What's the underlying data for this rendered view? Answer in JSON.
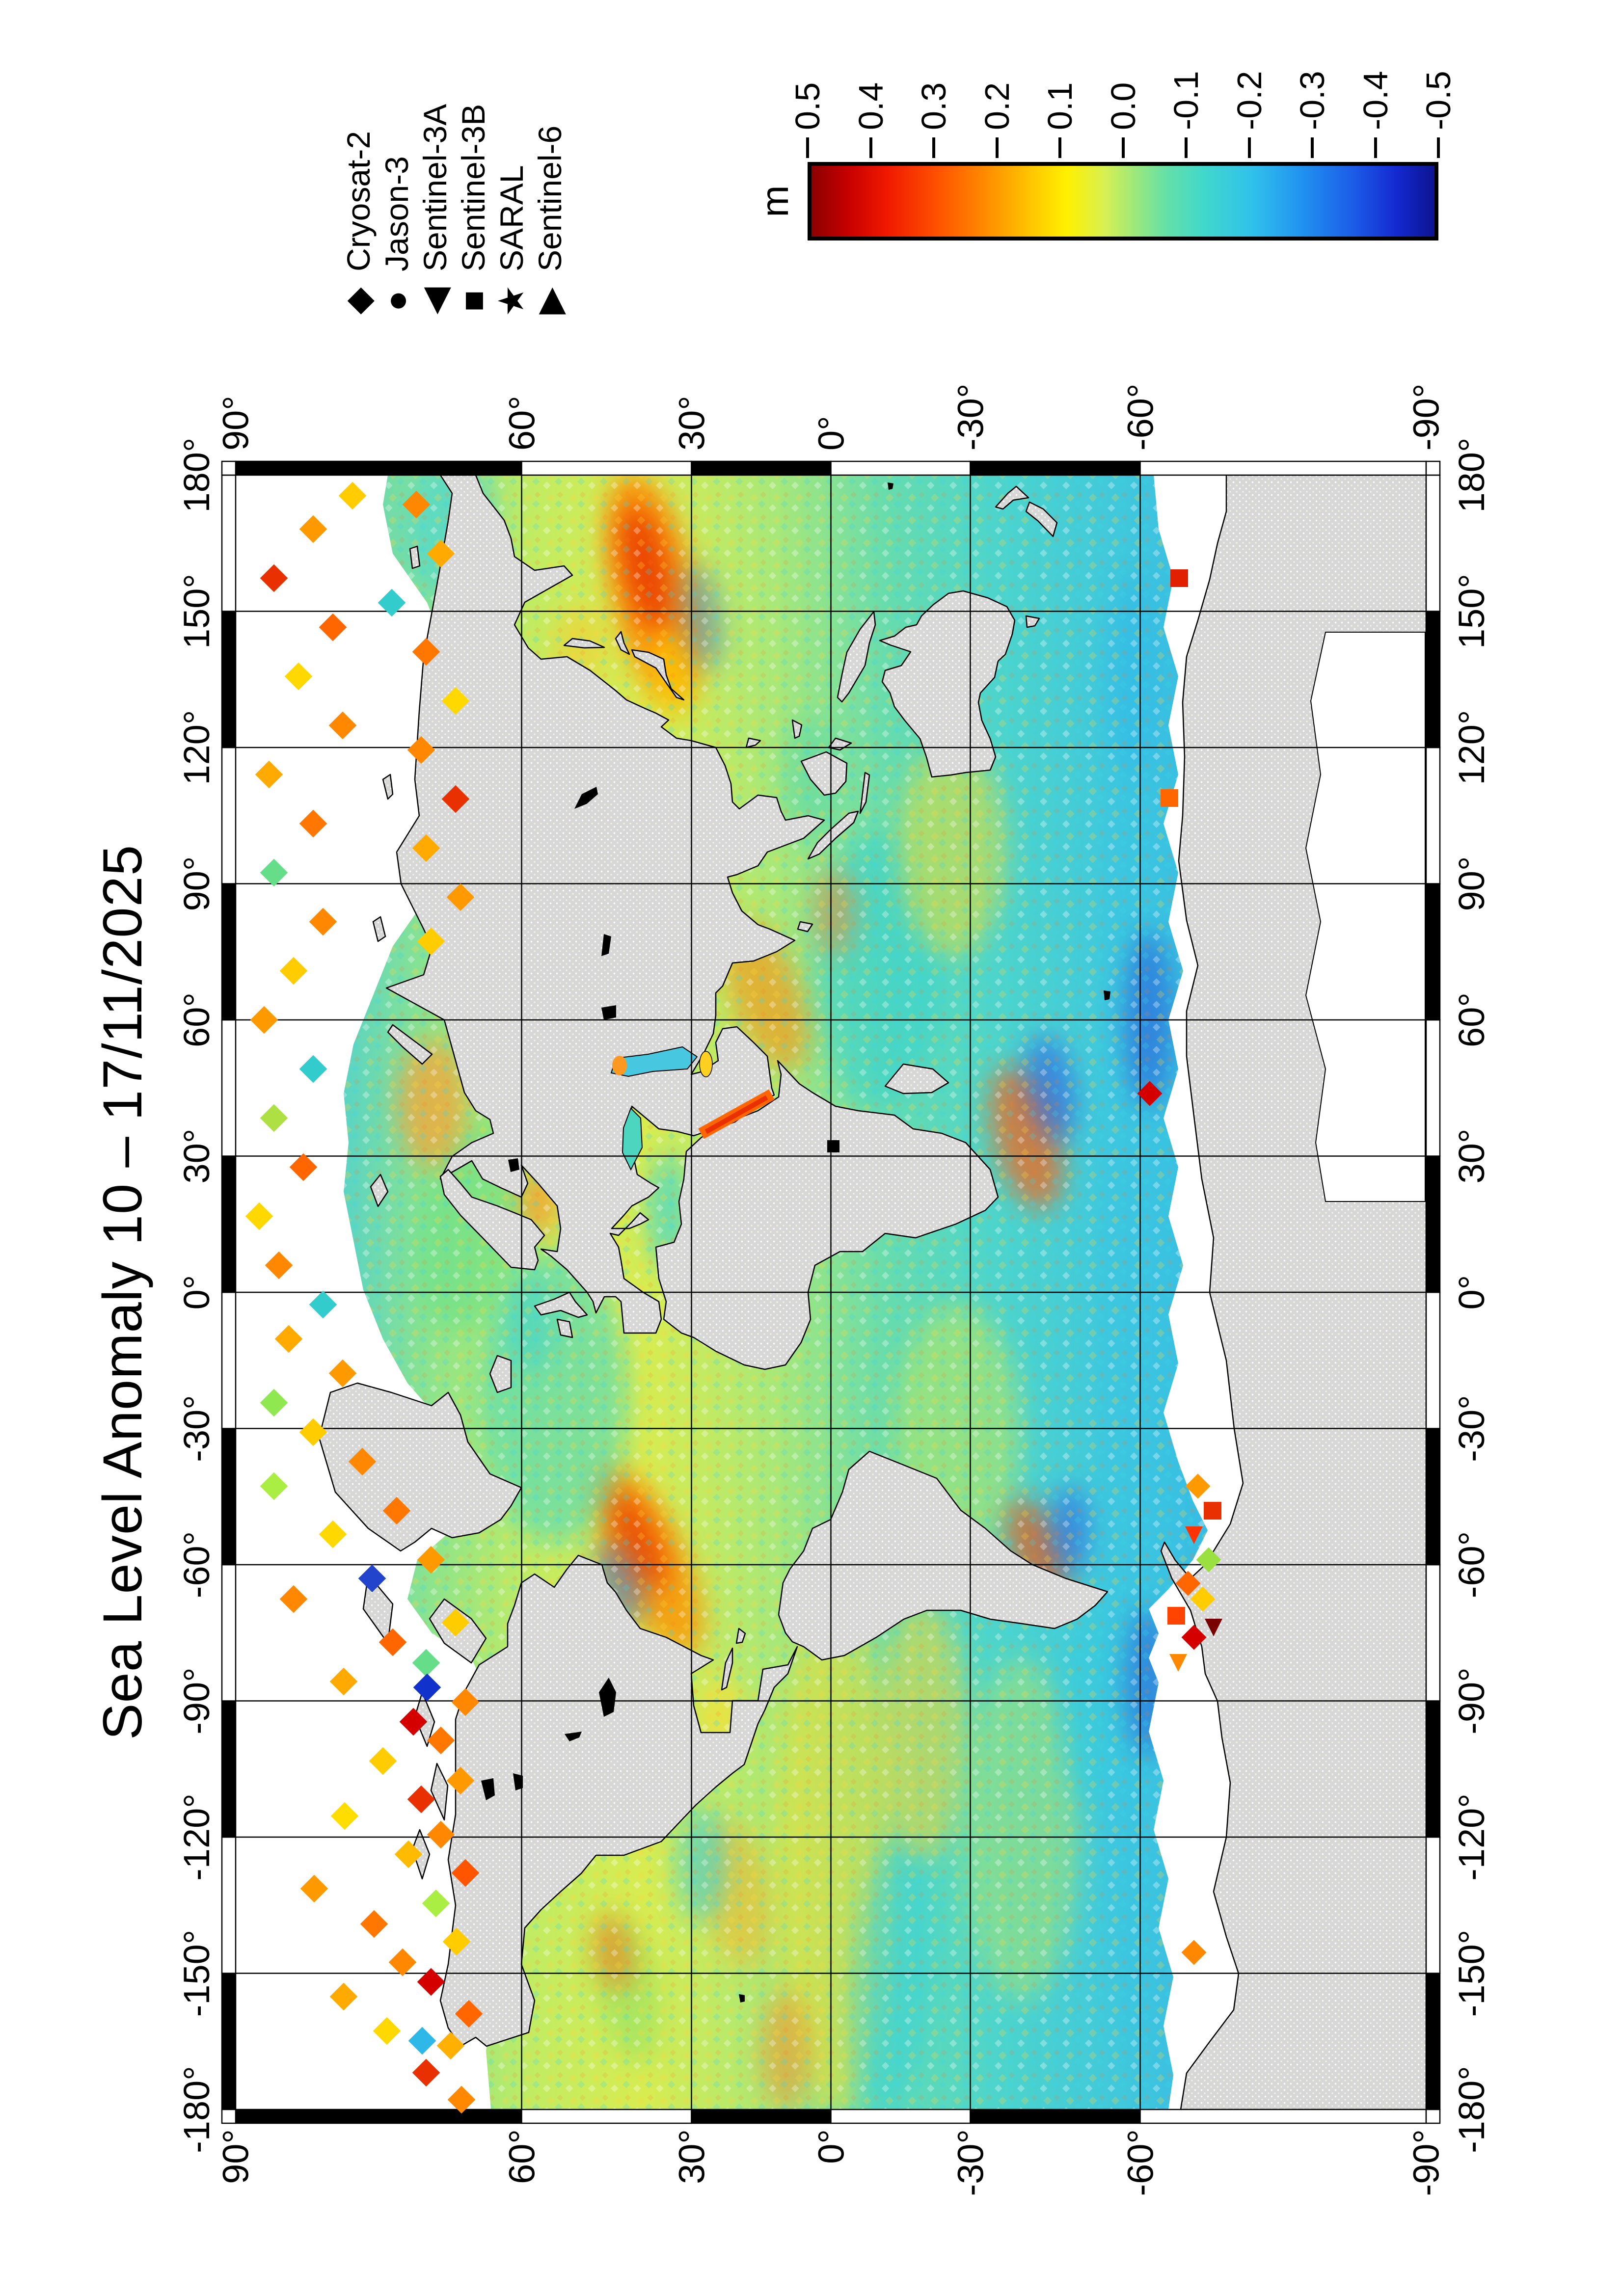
{
  "title": "Sea Level Anomaly 10 – 17/11/2025",
  "legend": {
    "items": [
      {
        "label": "Cryosat-2",
        "symbol": "diamond-icon",
        "glyph": "◆"
      },
      {
        "label": "Jason-3",
        "symbol": "circle-icon",
        "glyph": "●"
      },
      {
        "label": "Sentinel-3A",
        "symbol": "triangle-left-icon",
        "glyph": "◀"
      },
      {
        "label": "Sentinel-3B",
        "symbol": "square-icon",
        "glyph": "■"
      },
      {
        "label": "SARAL",
        "symbol": "star-icon",
        "glyph": "★"
      },
      {
        "label": "Sentinel-6",
        "symbol": "triangle-right-icon",
        "glyph": "▶"
      }
    ]
  },
  "colorbar": {
    "unit_label": "m",
    "max": 0.5,
    "min": -0.5,
    "tick_labels": [
      "0.5",
      "0.4",
      "0.3",
      "0.2",
      "0.1",
      "0.0",
      "-0.1",
      "-0.2",
      "-0.3",
      "-0.4",
      "-0.5"
    ],
    "gradient_colors": [
      "#8c0000",
      "#f01800",
      "#ff8c00",
      "#fff000",
      "#9ce87c",
      "#40d8cc",
      "#2090f0",
      "#1428d0",
      "#0c1490"
    ]
  },
  "axes": {
    "top_longitude_labels": [
      "-180°",
      "-150°",
      "-120°",
      "-90°",
      "-60°",
      "-30°",
      "0°",
      "30°",
      "60°",
      "90°",
      "120°",
      "150°",
      "180°"
    ],
    "bottom_longitude_labels": [
      "-180°",
      "-150°",
      "-120°",
      "-90°",
      "-60°",
      "-30°",
      "0°",
      "30°",
      "60°",
      "90°",
      "120°",
      "150°",
      "180°"
    ],
    "left_latitude_labels": [
      "90°",
      "60°",
      "30°",
      "0°",
      "-30°",
      "-60°",
      "-90°"
    ],
    "right_latitude_labels": [
      "90°",
      "60°",
      "30°",
      "0°",
      "-30°",
      "-60°",
      "-90°"
    ],
    "grid_interval_deg": 30
  },
  "chart_data": {
    "type": "heatmap",
    "title": "Sea Level Anomaly 10 – 17/11/2025",
    "value_range_m": [
      -0.5,
      0.5
    ],
    "colorbar_ticks": [
      0.5,
      0.4,
      0.3,
      0.2,
      0.1,
      0.0,
      -0.1,
      -0.2,
      -0.3,
      -0.4,
      -0.5
    ],
    "unit": "m",
    "longitude_range_deg": [
      -180,
      180
    ],
    "latitude_range_deg": [
      -90,
      90
    ],
    "satellites": [
      "Cryosat-2",
      "Jason-3",
      "Sentinel-3A",
      "Sentinel-3B",
      "SARAL",
      "Sentinel-6"
    ],
    "legend_position": "top-right",
    "colorbar_position": "right"
  },
  "map_colors": {
    "land": "#d7d7d7",
    "coastline": "#000000",
    "no_data": "#ffffff",
    "field_green": "#a8e878",
    "field_yellow": "#ffe020",
    "field_cyan": "#3cc8e8",
    "field_orange": "#ff8800",
    "field_red": "#e83000",
    "field_blue": "#1c5ce8"
  }
}
